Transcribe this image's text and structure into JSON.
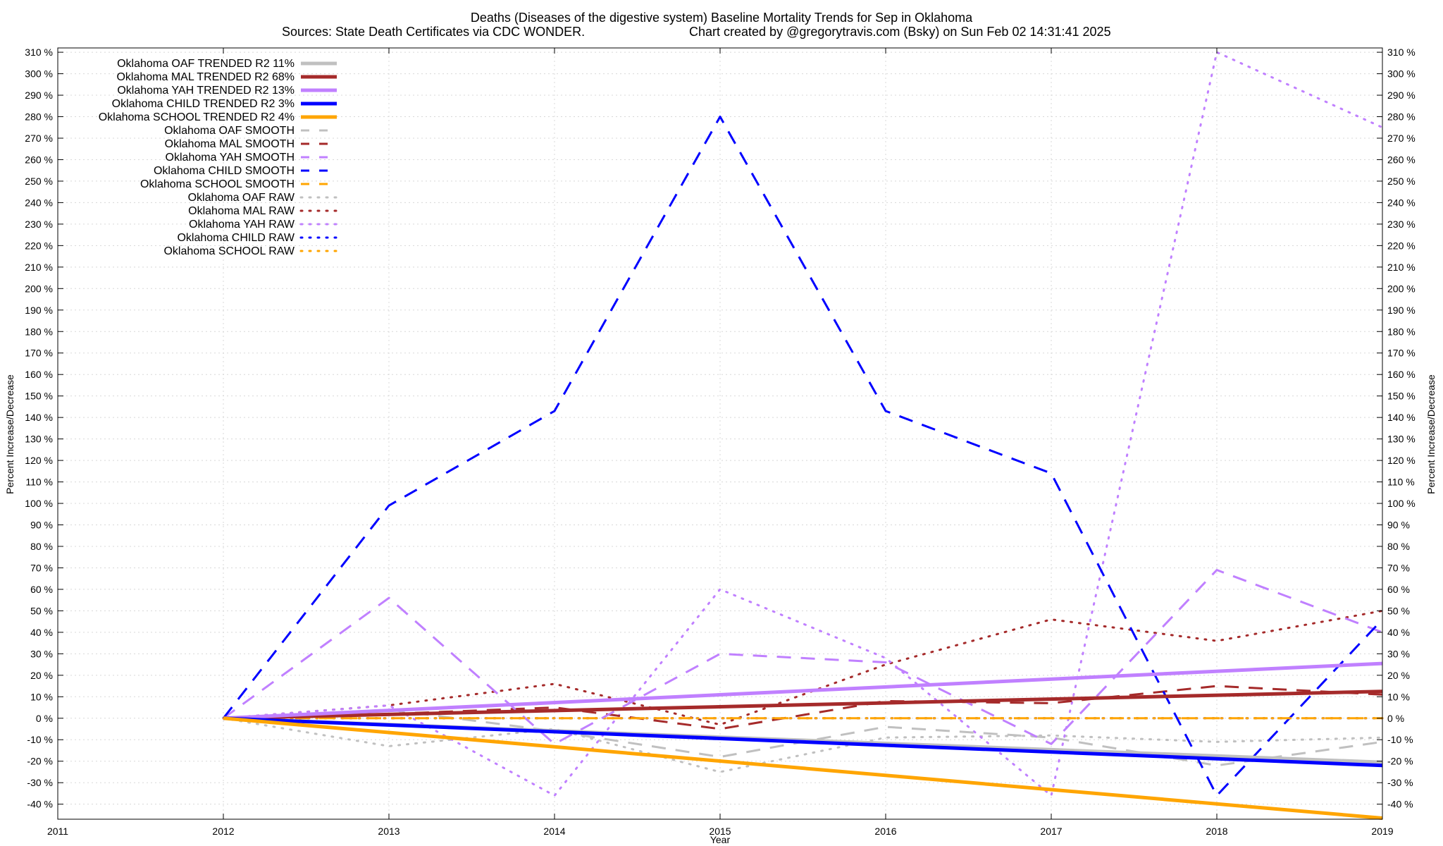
{
  "chart_data": {
    "type": "line",
    "title": "Deaths (Diseases of the digestive system)  Baseline Mortality Trends for Sep in Oklahoma",
    "subtitle_left": "Sources: State Death Certificates via CDC WONDER.",
    "subtitle_right": "Chart created by @gregorytravis.com (Bsky) on Sun Feb 02 14:31:41 2025",
    "xlabel": "Year",
    "ylabel_left": "Percent Increase/Decrease",
    "ylabel_right": "Percent Increase/Decrease",
    "xlim": [
      2011,
      2019
    ],
    "ylim": [
      -47,
      312
    ],
    "x_ticks": [
      2011,
      2012,
      2013,
      2014,
      2015,
      2016,
      2017,
      2018,
      2019
    ],
    "x_tick_labels": [
      "2011",
      "2012",
      "2013",
      "2014",
      "2015",
      "2016",
      "2017",
      "2018",
      "2019"
    ],
    "y_ticks": [
      -40,
      -30,
      -20,
      -10,
      0,
      10,
      20,
      30,
      40,
      50,
      60,
      70,
      80,
      90,
      100,
      110,
      120,
      130,
      140,
      150,
      160,
      170,
      180,
      190,
      200,
      210,
      220,
      230,
      240,
      250,
      260,
      270,
      280,
      290,
      300,
      310
    ],
    "y_tick_labels": [
      "-40 %",
      "-30 %",
      "-20 %",
      "-10 %",
      "0 %",
      "10 %",
      "20 %",
      "30 %",
      "40 %",
      "50 %",
      "60 %",
      "70 %",
      "80 %",
      "90 %",
      "100 %",
      "110 %",
      "120 %",
      "130 %",
      "140 %",
      "150 %",
      "160 %",
      "170 %",
      "180 %",
      "190 %",
      "200 %",
      "210 %",
      "220 %",
      "230 %",
      "240 %",
      "250 %",
      "260 %",
      "270 %",
      "280 %",
      "290 %",
      "300 %",
      "310 %"
    ],
    "grid": true,
    "legend_position": "top-left",
    "series": [
      {
        "name": "Oklahoma OAF TRENDED R2  11%",
        "style": "trend",
        "color": "#c0c0c0",
        "x": [
          2012,
          2019
        ],
        "y": [
          0,
          -20.5
        ]
      },
      {
        "name": "Oklahoma MAL TRENDED R2  68%",
        "style": "trend",
        "color": "#a52a2a",
        "x": [
          2012,
          2019
        ],
        "y": [
          0,
          12.5
        ]
      },
      {
        "name": "Oklahoma YAH TRENDED R2  13%",
        "style": "trend",
        "color": "#c080ff",
        "x": [
          2012,
          2019
        ],
        "y": [
          0,
          25.5
        ]
      },
      {
        "name": "Oklahoma CHILD TRENDED R2   3%",
        "style": "trend",
        "color": "#0000ff",
        "x": [
          2012,
          2019
        ],
        "y": [
          0,
          -22
        ]
      },
      {
        "name": "Oklahoma SCHOOL TRENDED R2   4%",
        "style": "trend",
        "color": "#ffa500",
        "x": [
          2012,
          2019
        ],
        "y": [
          0,
          -46.5
        ]
      },
      {
        "name": "Oklahoma OAF SMOOTH",
        "style": "smooth",
        "color": "#c0c0c0",
        "x": [
          2012,
          2013,
          2014,
          2015,
          2016,
          2017,
          2018,
          2019
        ],
        "y": [
          0,
          4,
          -6,
          -18,
          -4,
          -9,
          -22,
          -11
        ]
      },
      {
        "name": "Oklahoma MAL SMOOTH",
        "style": "smooth",
        "color": "#a52a2a",
        "x": [
          2012,
          2013,
          2014,
          2015,
          2016,
          2017,
          2018,
          2019
        ],
        "y": [
          0,
          2,
          5,
          -5,
          8,
          7,
          15,
          11
        ]
      },
      {
        "name": "Oklahoma YAH SMOOTH",
        "style": "smooth",
        "color": "#c080ff",
        "x": [
          2012,
          2013,
          2014,
          2015,
          2016,
          2017,
          2018,
          2019
        ],
        "y": [
          0,
          56,
          -12,
          30,
          26,
          -12,
          69,
          40
        ]
      },
      {
        "name": "Oklahoma CHILD SMOOTH",
        "style": "smooth",
        "color": "#0000ff",
        "x": [
          2012,
          2013,
          2014,
          2015,
          2016,
          2017,
          2018,
          2019
        ],
        "y": [
          0,
          99,
          143,
          280,
          143,
          114,
          -36,
          46
        ]
      },
      {
        "name": "Oklahoma SCHOOL SMOOTH",
        "style": "smooth",
        "color": "#ffa500",
        "x": [
          2012,
          2019
        ],
        "y": [
          0,
          0
        ]
      },
      {
        "name": "Oklahoma OAF RAW",
        "style": "raw",
        "color": "#c0c0c0",
        "x": [
          2012,
          2013,
          2014,
          2015,
          2016,
          2017,
          2018,
          2019
        ],
        "y": [
          0,
          -13,
          -5,
          -25,
          -9,
          -8,
          -11,
          -9
        ]
      },
      {
        "name": "Oklahoma MAL RAW",
        "style": "raw",
        "color": "#a52a2a",
        "x": [
          2012,
          2013,
          2014,
          2015,
          2016,
          2017,
          2018,
          2019
        ],
        "y": [
          0,
          6,
          16,
          -3,
          25,
          46,
          36,
          50
        ]
      },
      {
        "name": "Oklahoma YAH RAW",
        "style": "raw",
        "color": "#c080ff",
        "x": [
          2012,
          2013,
          2014,
          2015,
          2016,
          2017,
          2018,
          2019
        ],
        "y": [
          0,
          6,
          -36,
          60,
          28,
          -36,
          310,
          275
        ]
      },
      {
        "name": "Oklahoma CHILD RAW",
        "style": "raw",
        "color": "#0000ff",
        "x": [
          2012,
          2019
        ],
        "y": [
          0,
          0
        ]
      },
      {
        "name": "Oklahoma SCHOOL RAW",
        "style": "raw",
        "color": "#ffa500",
        "x": [
          2012,
          2019
        ],
        "y": [
          0,
          0
        ]
      }
    ]
  }
}
